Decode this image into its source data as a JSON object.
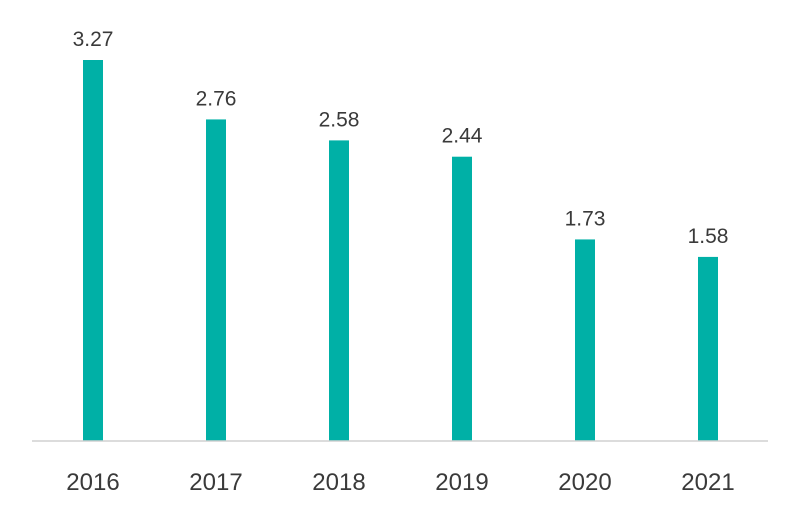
{
  "chart_data": {
    "type": "bar",
    "categories": [
      "2016",
      "2017",
      "2018",
      "2019",
      "2020",
      "2021"
    ],
    "values": [
      3.27,
      2.76,
      2.58,
      2.44,
      1.73,
      1.58
    ],
    "data_labels": [
      "3.27",
      "2.76",
      "2.58",
      "2.44",
      "1.73",
      "1.58"
    ],
    "title": "",
    "xlabel": "",
    "ylabel": "",
    "ylim": [
      0,
      3.27
    ],
    "grid": false,
    "legend": "none",
    "y_axis_visible": false
  },
  "colors": {
    "bar": "#00b0a6",
    "axis": "#d0d0d0",
    "text": "#3a3a3a"
  }
}
